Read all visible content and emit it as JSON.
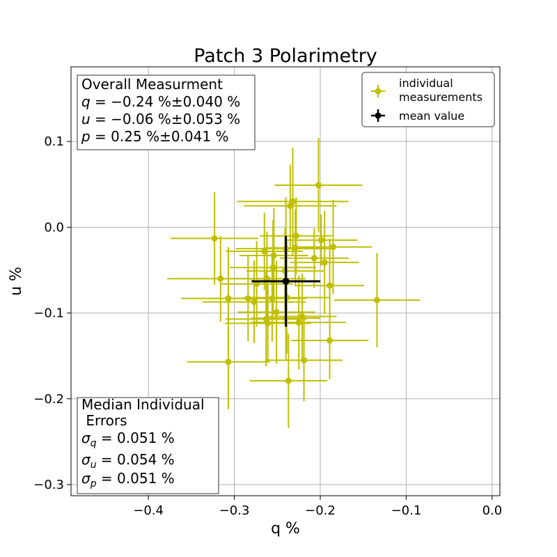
{
  "chart_data": {
    "type": "scatter",
    "title": "Patch 3 Polarimetry",
    "xlabel": "q %",
    "ylabel": "u %",
    "xlim": [
      -0.49,
      0.009
    ],
    "ylim": [
      -0.313,
      0.187
    ],
    "grid": true,
    "x_ticks": [
      -0.4,
      -0.3,
      -0.2,
      -0.1,
      0.0
    ],
    "x_tick_labels": [
      "−0.4",
      "−0.3",
      "−0.2",
      "−0.1",
      "0.0"
    ],
    "y_ticks": [
      0.1,
      0.0,
      -0.1,
      -0.2,
      -0.3
    ],
    "y_tick_labels": [
      "0.1",
      "0.0",
      "−0.1",
      "−0.2",
      "−0.3"
    ],
    "colors": {
      "individual": "#bfbf00",
      "mean": "#000000"
    },
    "legend": {
      "position": "top-right",
      "entries": [
        "individual\n measurements",
        "mean value"
      ]
    },
    "overall_box": {
      "heading": "Overall Measurment",
      "q_sym": "q",
      "q_val": " = −0.24 %±0.040 %",
      "u_sym": "u",
      "u_val": " = −0.06 %±0.053 %",
      "p_sym": "p",
      "p_val": " = 0.25 %±0.041 %"
    },
    "median_box": {
      "heading_line1": "Median Individual",
      "heading_line2": " Errors",
      "sigma": "σ",
      "q_sub": "q",
      "q_val": " = 0.051 %",
      "u_sub": "u",
      "u_val": " = 0.054 %",
      "p_sub": "p",
      "p_val": " = 0.051 %"
    },
    "mean_point": {
      "q": -0.24,
      "u": -0.063,
      "q_err": 0.04,
      "u_err": 0.053
    },
    "series": [
      {
        "name": "individual measurements",
        "points": [
          {
            "q": -0.202,
            "u": 0.049,
            "q_err": 0.051,
            "u_err": 0.055
          },
          {
            "q": -0.232,
            "u": 0.03,
            "q_err": 0.065,
            "u_err": 0.063
          },
          {
            "q": -0.235,
            "u": 0.025,
            "q_err": 0.054,
            "u_err": 0.048
          },
          {
            "q": -0.228,
            "u": -0.01,
            "q_err": 0.042,
            "u_err": 0.045
          },
          {
            "q": -0.323,
            "u": -0.013,
            "q_err": 0.051,
            "u_err": 0.054
          },
          {
            "q": -0.199,
            "u": -0.015,
            "q_err": 0.042,
            "u_err": 0.03
          },
          {
            "q": -0.185,
            "u": -0.023,
            "q_err": 0.045,
            "u_err": 0.055
          },
          {
            "q": -0.24,
            "u": -0.025,
            "q_err": 0.058,
            "u_err": 0.06
          },
          {
            "q": -0.265,
            "u": -0.028,
            "q_err": 0.045,
            "u_err": 0.045
          },
          {
            "q": -0.229,
            "u": -0.024,
            "q_err": 0.035,
            "u_err": 0.045
          },
          {
            "q": -0.254,
            "u": -0.033,
            "q_err": 0.04,
            "u_err": 0.055
          },
          {
            "q": -0.207,
            "u": -0.036,
            "q_err": 0.04,
            "u_err": 0.035
          },
          {
            "q": -0.195,
            "u": -0.041,
            "q_err": 0.04,
            "u_err": 0.06
          },
          {
            "q": -0.255,
            "u": -0.047,
            "q_err": 0.05,
            "u_err": 0.055
          },
          {
            "q": -0.241,
            "u": -0.051,
            "q_err": 0.045,
            "u_err": 0.05
          },
          {
            "q": -0.316,
            "u": -0.06,
            "q_err": 0.062,
            "u_err": 0.05
          },
          {
            "q": -0.262,
            "u": -0.06,
            "q_err": 0.045,
            "u_err": 0.055
          },
          {
            "q": -0.274,
            "u": -0.066,
            "q_err": 0.042,
            "u_err": 0.05
          },
          {
            "q": -0.189,
            "u": -0.068,
            "q_err": 0.04,
            "u_err": 0.055
          },
          {
            "q": -0.307,
            "u": -0.083,
            "q_err": 0.055,
            "u_err": 0.06
          },
          {
            "q": -0.284,
            "u": -0.083,
            "q_err": 0.047,
            "u_err": 0.05
          },
          {
            "q": -0.277,
            "u": -0.087,
            "q_err": 0.06,
            "u_err": 0.048
          },
          {
            "q": -0.256,
            "u": -0.083,
            "q_err": 0.04,
            "u_err": 0.05
          },
          {
            "q": -0.239,
            "u": -0.082,
            "q_err": 0.05,
            "u_err": 0.065
          },
          {
            "q": -0.134,
            "u": -0.085,
            "q_err": 0.05,
            "u_err": 0.055
          },
          {
            "q": -0.251,
            "u": -0.099,
            "q_err": 0.045,
            "u_err": 0.06
          },
          {
            "q": -0.263,
            "u": -0.107,
            "q_err": 0.047,
            "u_err": 0.055
          },
          {
            "q": -0.221,
            "u": -0.104,
            "q_err": 0.04,
            "u_err": 0.05
          },
          {
            "q": -0.24,
            "u": -0.106,
            "q_err": 0.04,
            "u_err": 0.05
          },
          {
            "q": -0.261,
            "u": -0.112,
            "q_err": 0.05,
            "u_err": 0.045
          },
          {
            "q": -0.225,
            "u": -0.111,
            "q_err": 0.055,
            "u_err": 0.055
          },
          {
            "q": -0.189,
            "u": -0.132,
            "q_err": 0.045,
            "u_err": 0.045
          },
          {
            "q": -0.307,
            "u": -0.157,
            "q_err": 0.048,
            "u_err": 0.055
          },
          {
            "q": -0.219,
            "u": -0.155,
            "q_err": 0.045,
            "u_err": 0.048
          },
          {
            "q": -0.237,
            "u": -0.179,
            "q_err": 0.045,
            "u_err": 0.055
          }
        ]
      }
    ]
  }
}
